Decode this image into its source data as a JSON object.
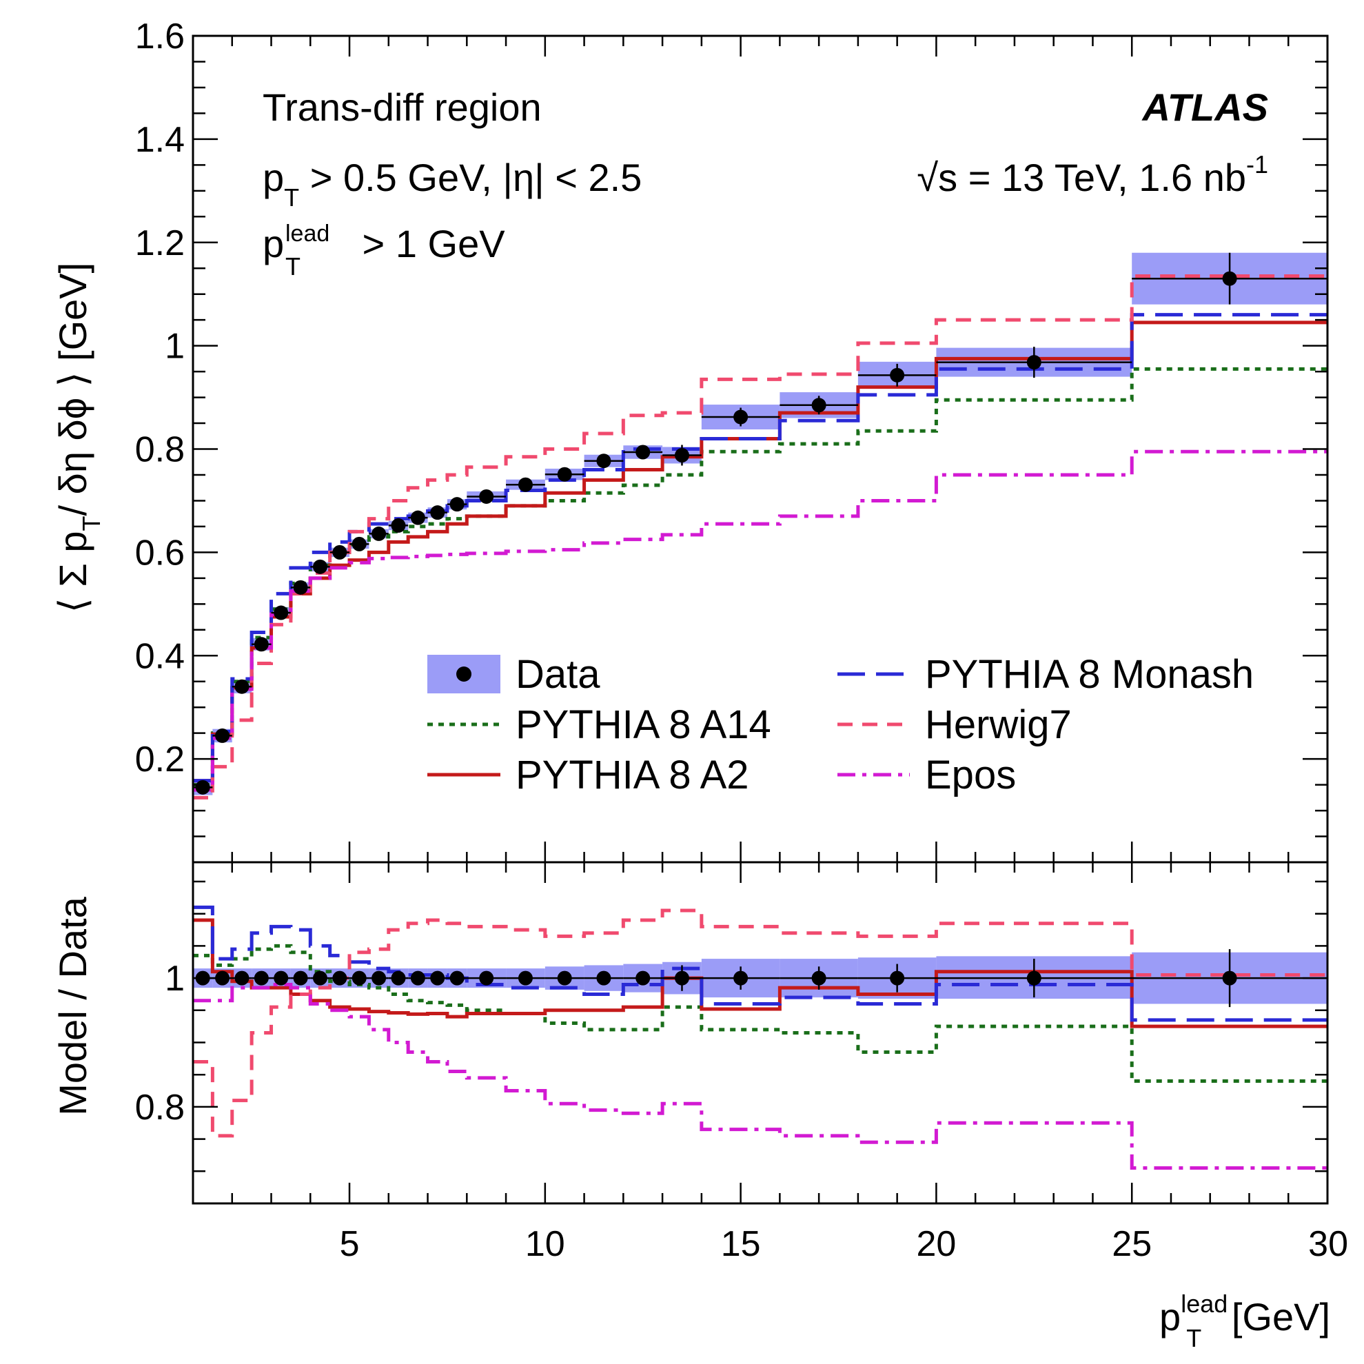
{
  "colors": {
    "band": "#9b9cf7",
    "data_point": "#000000",
    "pythia8_a14": "#1a6e1a",
    "pythia8_a2": "#c41a1a",
    "pythia8_monash": "#2a2ad6",
    "herwig7": "#f04a6e",
    "epos": "#d21ad2"
  },
  "annotations": {
    "region": "Trans-diff region",
    "cut_pt_base": "p",
    "cut_pt_sub": "T",
    "cut_pt_rest": " > 0.5 GeV, |η| < 2.5",
    "cut_lead_base": "p",
    "cut_lead_sup": "lead",
    "cut_lead_sub": "T",
    "cut_lead_rest": " > 1 GeV",
    "atlas": "ATLAS",
    "energy_sqrt": "√",
    "energy_text": "s = 13 TeV, 1.6 nb",
    "energy_sup": "-1"
  },
  "axes": {
    "ylabel_top": "⟨ Σ p",
    "ylabel_top_sub": "T",
    "ylabel_top_rest": "/ δη δϕ ⟩ [GeV]",
    "ylabel_bottom": "Model / Data",
    "xlabel_base": "p",
    "xlabel_sup": "lead",
    "xlabel_sub": "T",
    "xlabel_rest": " [GeV]"
  },
  "chart_data": {
    "type": "line",
    "x_edges": [
      1,
      1.5,
      2,
      2.5,
      3,
      3.5,
      4,
      4.5,
      5,
      5.5,
      6,
      6.5,
      7,
      7.5,
      8,
      9,
      10,
      11,
      12,
      13,
      14,
      16,
      18,
      20,
      25,
      30
    ],
    "x_centers": [
      1.25,
      1.75,
      2.25,
      2.75,
      3.25,
      3.75,
      4.25,
      4.75,
      5.25,
      5.75,
      6.25,
      6.75,
      7.25,
      7.75,
      8.5,
      9.5,
      10.5,
      11.5,
      12.5,
      13.5,
      15,
      17,
      19,
      22.5,
      27.5
    ],
    "xlim": [
      1,
      30
    ],
    "x_ticks": [
      5,
      10,
      15,
      20,
      25,
      30
    ],
    "top_panel": {
      "ylim": [
        0,
        1.6
      ],
      "y_ticks": [
        0.2,
        0.4,
        0.6,
        0.8,
        1,
        1.2,
        1.4,
        1.6
      ],
      "y_tick_labels": [
        "0.2",
        "0.4",
        "0.6",
        "0.8",
        "1",
        "1.2",
        "1.4",
        "1.6"
      ],
      "data": {
        "name": "Data",
        "values": [
          0.145,
          0.245,
          0.34,
          0.422,
          0.483,
          0.532,
          0.572,
          0.6,
          0.616,
          0.636,
          0.652,
          0.667,
          0.677,
          0.693,
          0.708,
          0.731,
          0.751,
          0.777,
          0.794,
          0.788,
          0.862,
          0.885,
          0.943,
          0.968,
          1.13
        ],
        "band_low": [
          0.13,
          0.232,
          0.327,
          0.41,
          0.472,
          0.522,
          0.563,
          0.591,
          0.607,
          0.627,
          0.643,
          0.657,
          0.667,
          0.683,
          0.698,
          0.721,
          0.74,
          0.765,
          0.781,
          0.772,
          0.838,
          0.86,
          0.917,
          0.94,
          1.08
        ],
        "band_high": [
          0.16,
          0.258,
          0.353,
          0.434,
          0.494,
          0.542,
          0.581,
          0.609,
          0.625,
          0.645,
          0.661,
          0.677,
          0.687,
          0.703,
          0.718,
          0.741,
          0.762,
          0.789,
          0.807,
          0.804,
          0.886,
          0.91,
          0.969,
          0.996,
          1.18
        ],
        "yerr": [
          0,
          0,
          0,
          0,
          0,
          0,
          0,
          0,
          0,
          0,
          0,
          0,
          0,
          0,
          0,
          0,
          0,
          0,
          0,
          0.02,
          0.018,
          0.018,
          0.022,
          0.03,
          0.05
        ]
      },
      "series": [
        {
          "name": "PYTHIA 8 A14",
          "style": "dotted",
          "color_key": "pythia8_a14",
          "values": [
            0.15,
            0.25,
            0.35,
            0.435,
            0.49,
            0.54,
            0.575,
            0.6,
            0.615,
            0.63,
            0.64,
            0.65,
            0.655,
            0.665,
            0.67,
            0.69,
            0.7,
            0.715,
            0.73,
            0.75,
            0.795,
            0.81,
            0.835,
            0.895,
            0.955
          ]
        },
        {
          "name": "PYTHIA 8 A2",
          "style": "solid",
          "color_key": "pythia8_a2",
          "values": [
            0.158,
            0.248,
            0.338,
            0.415,
            0.475,
            0.52,
            0.55,
            0.575,
            0.585,
            0.6,
            0.62,
            0.63,
            0.64,
            0.655,
            0.67,
            0.69,
            0.715,
            0.74,
            0.76,
            0.785,
            0.82,
            0.87,
            0.92,
            0.975,
            1.045
          ]
        },
        {
          "name": "PYTHIA 8 Monash",
          "style": "dashed",
          "color_key": "pythia8_monash",
          "values": [
            0.158,
            0.253,
            0.355,
            0.445,
            0.52,
            0.57,
            0.6,
            0.62,
            0.64,
            0.655,
            0.665,
            0.67,
            0.68,
            0.69,
            0.7,
            0.72,
            0.74,
            0.76,
            0.8,
            0.8,
            0.82,
            0.855,
            0.905,
            0.955,
            1.06
          ]
        },
        {
          "name": "Herwig7",
          "style": "dashed-short",
          "color_key": "herwig7",
          "values": [
            0.125,
            0.185,
            0.275,
            0.385,
            0.46,
            0.52,
            0.56,
            0.6,
            0.64,
            0.665,
            0.7,
            0.725,
            0.74,
            0.75,
            0.765,
            0.785,
            0.8,
            0.83,
            0.865,
            0.87,
            0.935,
            0.945,
            1.005,
            1.05,
            1.135
          ]
        },
        {
          "name": "Epos",
          "style": "dashdot",
          "color_key": "epos",
          "values": [
            0.14,
            0.24,
            0.335,
            0.415,
            0.48,
            0.525,
            0.55,
            0.57,
            0.58,
            0.588,
            0.59,
            0.592,
            0.594,
            0.596,
            0.598,
            0.602,
            0.605,
            0.618,
            0.625,
            0.634,
            0.655,
            0.67,
            0.7,
            0.75,
            0.795
          ]
        }
      ]
    },
    "bottom_panel": {
      "ylabel": "Model / Data",
      "ylim": [
        0.65,
        1.18
      ],
      "y_ticks": [
        0.8,
        1
      ],
      "y_tick_labels": [
        "0.8",
        "1"
      ],
      "data": {
        "values": [
          1,
          1,
          1,
          1,
          1,
          1,
          1,
          1,
          1,
          1,
          1,
          1,
          1,
          1,
          1,
          1,
          1,
          1,
          1,
          1,
          1,
          1,
          1,
          1,
          1
        ],
        "band_low": [
          0.985,
          0.985,
          0.985,
          0.985,
          0.985,
          0.985,
          0.985,
          0.985,
          0.985,
          0.985,
          0.985,
          0.985,
          0.985,
          0.985,
          0.985,
          0.985,
          0.982,
          0.98,
          0.978,
          0.975,
          0.97,
          0.97,
          0.968,
          0.968,
          0.96
        ],
        "band_high": [
          1.015,
          1.015,
          1.015,
          1.015,
          1.015,
          1.015,
          1.015,
          1.015,
          1.015,
          1.015,
          1.015,
          1.015,
          1.015,
          1.015,
          1.015,
          1.015,
          1.018,
          1.02,
          1.022,
          1.025,
          1.03,
          1.03,
          1.032,
          1.034,
          1.04
        ],
        "yerr": [
          0,
          0,
          0,
          0,
          0,
          0,
          0,
          0,
          0,
          0,
          0,
          0,
          0,
          0,
          0,
          0,
          0,
          0,
          0,
          0.02,
          0.018,
          0.018,
          0.022,
          0.03,
          0.045
        ]
      },
      "series": [
        {
          "name": "PYTHIA 8 A14",
          "style": "dotted",
          "color_key": "pythia8_a14",
          "values": [
            1.035,
            1.02,
            1.03,
            1.045,
            1.05,
            1.04,
            1.01,
            0.995,
            0.99,
            0.985,
            0.975,
            0.965,
            0.962,
            0.958,
            0.95,
            0.945,
            0.93,
            0.92,
            0.92,
            0.955,
            0.92,
            0.915,
            0.885,
            0.925,
            0.84
          ]
        },
        {
          "name": "PYTHIA 8 A2",
          "style": "solid",
          "color_key": "pythia8_a2",
          "values": [
            1.09,
            1.01,
            0.995,
            0.985,
            0.985,
            0.975,
            0.965,
            0.955,
            0.952,
            0.948,
            0.946,
            0.944,
            0.945,
            0.94,
            0.945,
            0.945,
            0.95,
            0.95,
            0.955,
            1.0,
            0.952,
            0.985,
            0.975,
            1.01,
            0.925
          ]
        },
        {
          "name": "PYTHIA 8 Monash",
          "style": "dashed",
          "color_key": "pythia8_monash",
          "values": [
            1.11,
            1.03,
            1.045,
            1.07,
            1.08,
            1.075,
            1.05,
            1.035,
            1.025,
            1.015,
            1.01,
            1.005,
            1.005,
            1.0,
            0.99,
            0.985,
            0.985,
            0.975,
            0.99,
            1.015,
            0.96,
            0.97,
            0.96,
            0.99,
            0.935
          ]
        },
        {
          "name": "Herwig7",
          "style": "dashed-short",
          "color_key": "herwig7",
          "values": [
            0.87,
            0.755,
            0.81,
            0.915,
            0.955,
            0.975,
            0.985,
            1.0,
            1.04,
            1.045,
            1.075,
            1.085,
            1.09,
            1.085,
            1.08,
            1.075,
            1.065,
            1.07,
            1.09,
            1.105,
            1.08,
            1.07,
            1.065,
            1.085,
            1.005
          ]
        },
        {
          "name": "Epos",
          "style": "dashdot",
          "color_key": "epos",
          "values": [
            0.965,
            0.965,
            0.985,
            0.985,
            0.99,
            0.985,
            0.96,
            0.95,
            0.94,
            0.92,
            0.9,
            0.885,
            0.87,
            0.855,
            0.845,
            0.825,
            0.805,
            0.795,
            0.79,
            0.805,
            0.765,
            0.755,
            0.745,
            0.775,
            0.705
          ]
        }
      ]
    },
    "legend": {
      "placement": "lower-right of top panel",
      "entries": [
        {
          "label": "Data",
          "kind": "data"
        },
        {
          "label": "PYTHIA 8 A14",
          "kind": "line",
          "series": 0
        },
        {
          "label": "PYTHIA 8 A2",
          "kind": "line",
          "series": 1
        },
        {
          "label": "PYTHIA 8 Monash",
          "kind": "line",
          "series": 2
        },
        {
          "label": "Herwig7",
          "kind": "line",
          "series": 3
        },
        {
          "label": "Epos",
          "kind": "line",
          "series": 4
        }
      ]
    }
  }
}
